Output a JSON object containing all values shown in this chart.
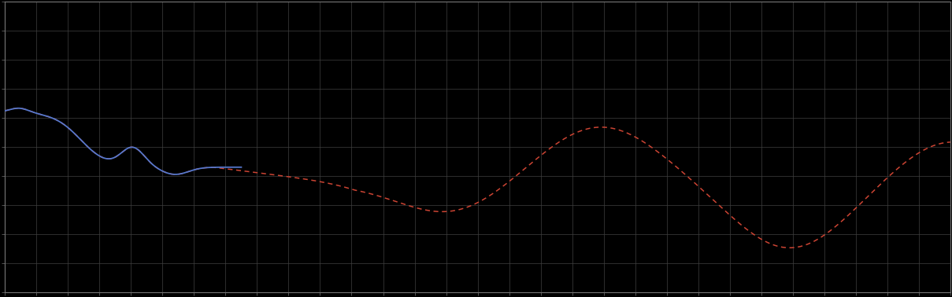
{
  "background_color": "#000000",
  "plot_bg_color": "#000000",
  "grid_color": "#404040",
  "line_blue_color": "#5577cc",
  "line_red_color": "#cc4433",
  "figsize": [
    12.09,
    3.78
  ],
  "dpi": 100,
  "spine_color": "#777777",
  "xlim": [
    0,
    100
  ],
  "ylim": [
    0,
    10
  ],
  "x_grid_spacing": 3.33,
  "y_grid_spacing": 1.0
}
